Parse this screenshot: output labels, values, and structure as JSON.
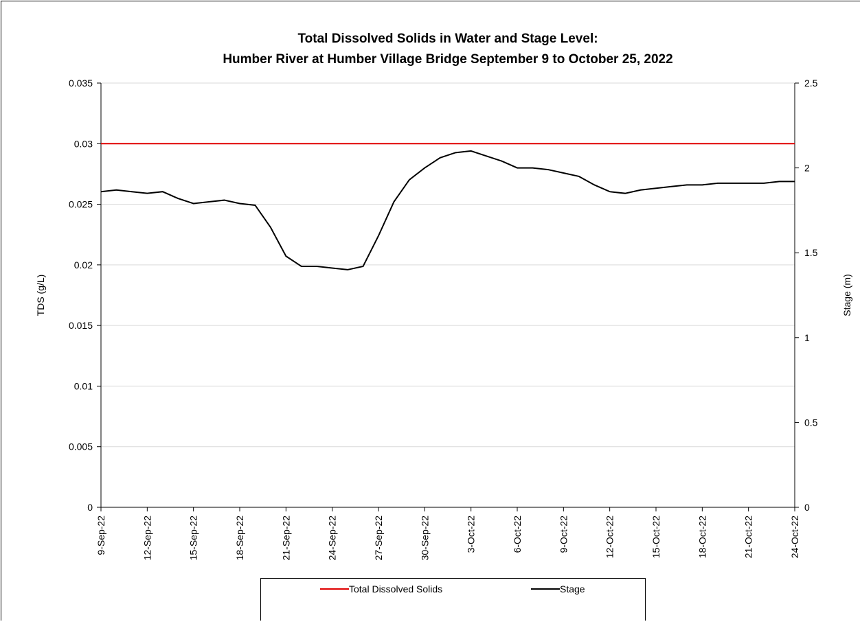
{
  "chart_data": {
    "type": "line",
    "title": [
      "Total Dissolved Solids in Water and Stage Level:",
      "Humber River at Humber Village Bridge September 9 to October 25, 2022"
    ],
    "ylabel": "TDS (g/L)",
    "y2label": "Stage (m)",
    "xlim": [
      "2022-09-09",
      "2022-10-24"
    ],
    "xticks": [
      {
        "value": "2022-09-09",
        "label": "9-Sep-22"
      },
      {
        "value": "2022-09-12",
        "label": "12-Sep-22"
      },
      {
        "value": "2022-09-15",
        "label": "15-Sep-22"
      },
      {
        "value": "2022-09-18",
        "label": "18-Sep-22"
      },
      {
        "value": "2022-09-21",
        "label": "21-Sep-22"
      },
      {
        "value": "2022-09-24",
        "label": "24-Sep-22"
      },
      {
        "value": "2022-09-27",
        "label": "27-Sep-22"
      },
      {
        "value": "2022-09-30",
        "label": "30-Sep-22"
      },
      {
        "value": "2022-10-03",
        "label": "3-Oct-22"
      },
      {
        "value": "2022-10-06",
        "label": "6-Oct-22"
      },
      {
        "value": "2022-10-09",
        "label": "9-Oct-22"
      },
      {
        "value": "2022-10-12",
        "label": "12-Oct-22"
      },
      {
        "value": "2022-10-15",
        "label": "15-Oct-22"
      },
      {
        "value": "2022-10-18",
        "label": "18-Oct-22"
      },
      {
        "value": "2022-10-21",
        "label": "21-Oct-22"
      },
      {
        "value": "2022-10-24",
        "label": "24-Oct-22"
      }
    ],
    "ylim": [
      0,
      0.035
    ],
    "yticks": [
      0,
      0.005,
      0.01,
      0.015,
      0.02,
      0.025,
      0.03,
      0.035
    ],
    "y2lim": [
      0,
      2.5
    ],
    "y2ticks": [
      0,
      0.5,
      1,
      1.5,
      2,
      2.5
    ],
    "grid": true,
    "legend": "bottom",
    "series": [
      {
        "name": "Total Dissolved Solids",
        "color": "#e00000",
        "x": [
          "2022-09-09",
          "2022-10-24"
        ],
        "values": [
          0.03,
          0.03
        ]
      },
      {
        "name": "Stage",
        "color": "#000000",
        "axis": "y2",
        "x": [
          "2022-09-09",
          "2022-09-10",
          "2022-09-11",
          "2022-09-12",
          "2022-09-13",
          "2022-09-14",
          "2022-09-15",
          "2022-09-16",
          "2022-09-17",
          "2022-09-18",
          "2022-09-19",
          "2022-09-20",
          "2022-09-21",
          "2022-09-22",
          "2022-09-23",
          "2022-09-24",
          "2022-09-25",
          "2022-09-26",
          "2022-09-27",
          "2022-09-28",
          "2022-09-29",
          "2022-09-30",
          "2022-10-01",
          "2022-10-02",
          "2022-10-03",
          "2022-10-04",
          "2022-10-05",
          "2022-10-06",
          "2022-10-07",
          "2022-10-08",
          "2022-10-09",
          "2022-10-10",
          "2022-10-11",
          "2022-10-12",
          "2022-10-13",
          "2022-10-14",
          "2022-10-15",
          "2022-10-16",
          "2022-10-17",
          "2022-10-18",
          "2022-10-19",
          "2022-10-20",
          "2022-10-21",
          "2022-10-22",
          "2022-10-23",
          "2022-10-24"
        ],
        "values": [
          1.86,
          1.87,
          1.86,
          1.85,
          1.86,
          1.82,
          1.79,
          1.8,
          1.81,
          1.79,
          1.78,
          1.65,
          1.48,
          1.42,
          1.42,
          1.41,
          1.4,
          1.42,
          1.6,
          1.8,
          1.93,
          2.0,
          2.06,
          2.09,
          2.1,
          2.07,
          2.04,
          2.0,
          2.0,
          1.99,
          1.97,
          1.95,
          1.9,
          1.86,
          1.85,
          1.87,
          1.88,
          1.89,
          1.9,
          1.9,
          1.91,
          1.91,
          1.91,
          1.91,
          1.92,
          1.92
        ]
      }
    ]
  }
}
